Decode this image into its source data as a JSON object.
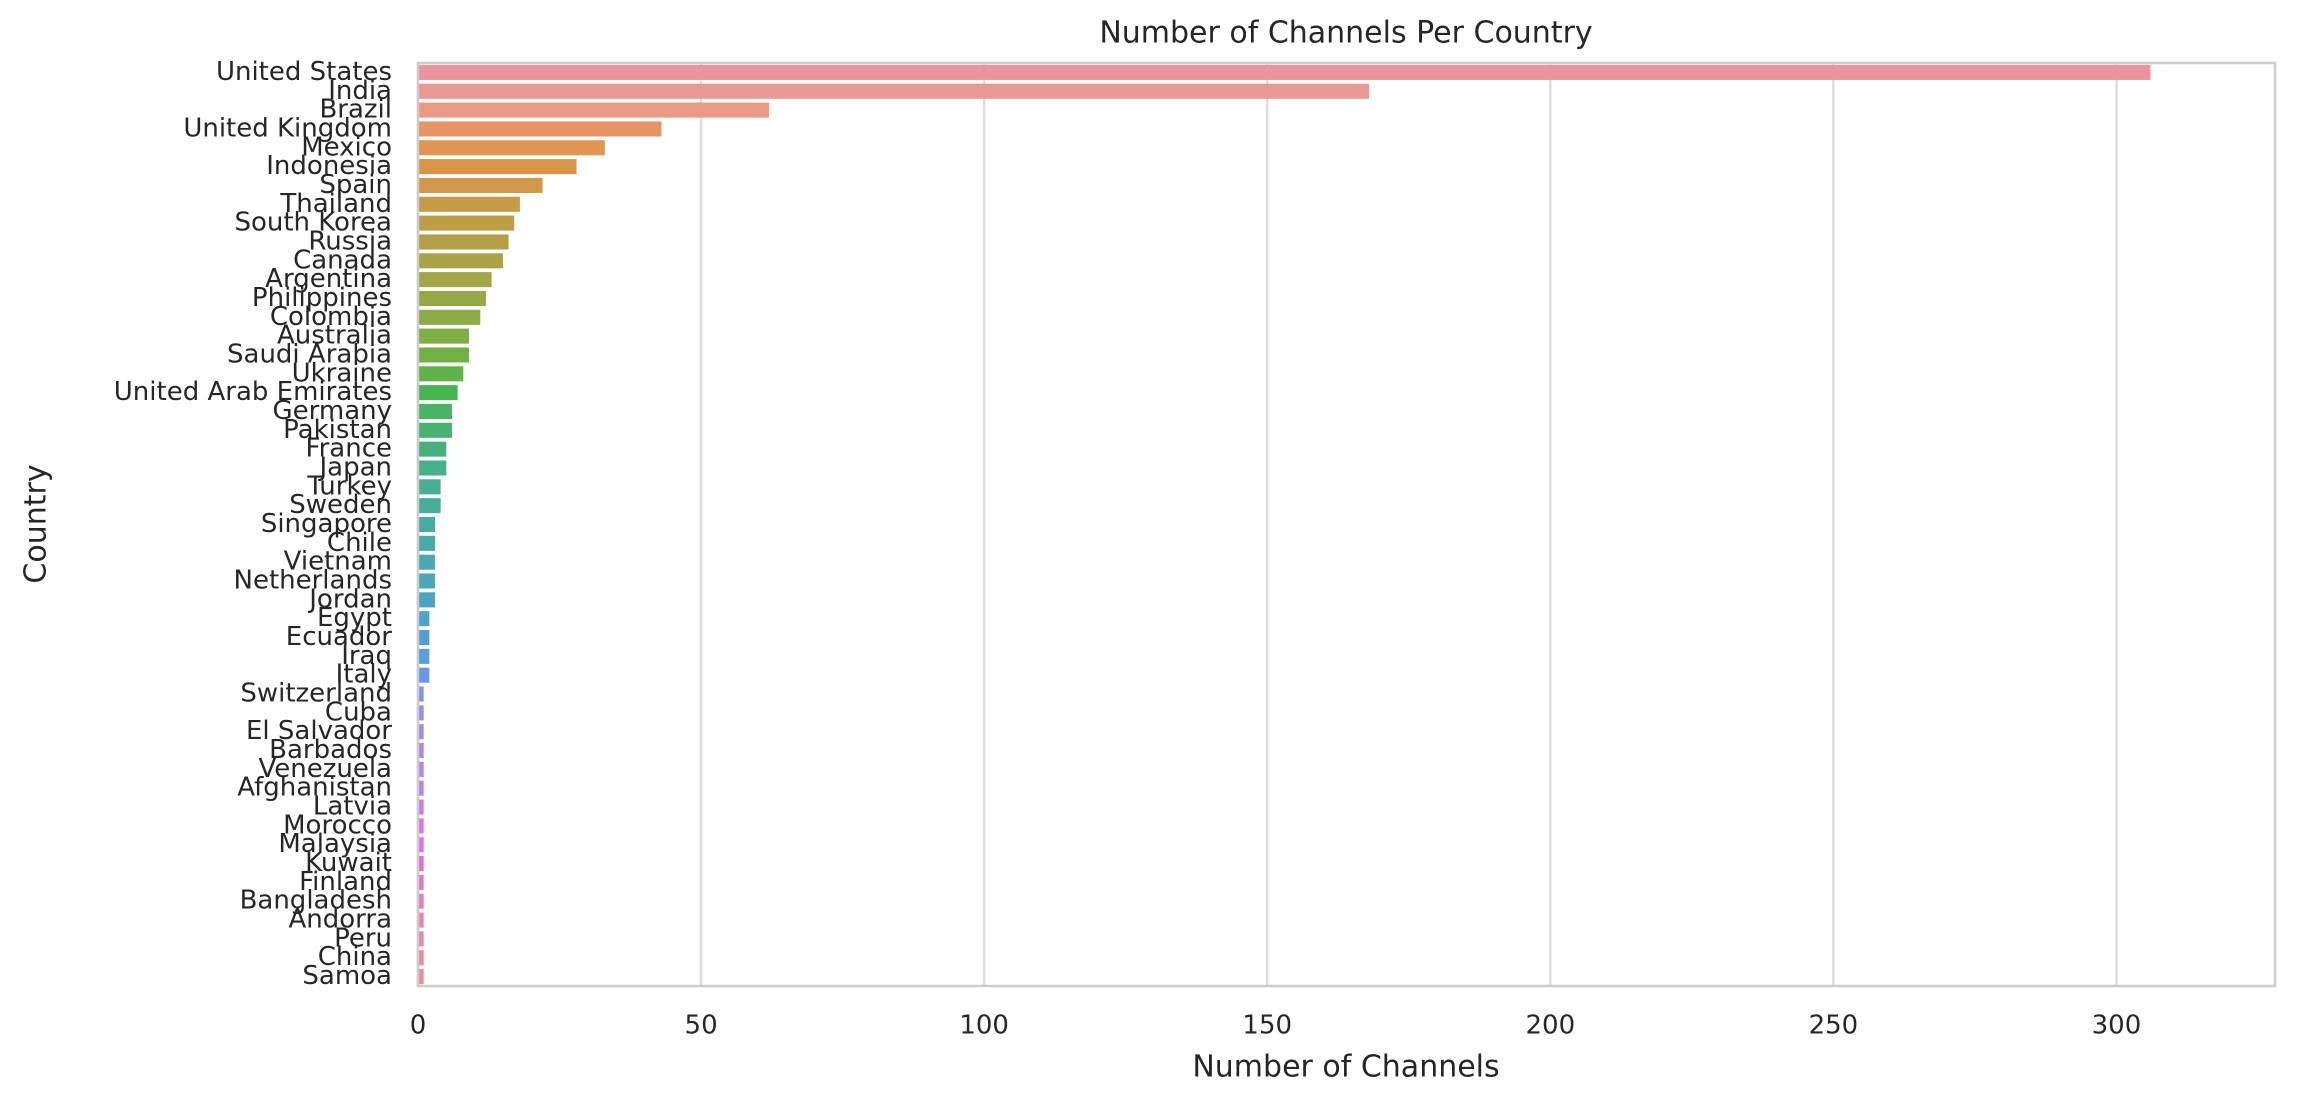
{
  "chart_data": {
    "type": "barh",
    "title": "Number of Channels Per Country",
    "x_label": "Number of Channels",
    "y_label": "Country",
    "categories": [
      "United States",
      "India",
      "Brazil",
      "United Kingdom",
      "Mexico",
      "Indonesia",
      "Spain",
      "Thailand",
      "South Korea",
      "Russia",
      "Canada",
      "Argentina",
      "Philippines",
      "Colombia",
      "Australia",
      "Saudi Arabia",
      "Ukraine",
      "United Arab Emirates",
      "Germany",
      "Pakistan",
      "France",
      "Japan",
      "Turkey",
      "Sweden",
      "Singapore",
      "Chile",
      "Vietnam",
      "Netherlands",
      "Jordan",
      "Egypt",
      "Ecuador",
      "Iraq",
      "Italy",
      "Switzerland",
      "Cuba",
      "El Salvador",
      "Barbados",
      "Venezuela",
      "Afghanistan",
      "Latvia",
      "Morocco",
      "Malaysia",
      "Kuwait",
      "Finland",
      "Bangladesh",
      "Andorra",
      "Peru",
      "China",
      "Samoa"
    ],
    "values": [
      306,
      168,
      62,
      43,
      33,
      28,
      22,
      18,
      17,
      16,
      15,
      13,
      12,
      11,
      9,
      9,
      8,
      7,
      6,
      6,
      5,
      5,
      4,
      4,
      3,
      3,
      3,
      3,
      3,
      2,
      2,
      2,
      2,
      1,
      1,
      1,
      1,
      1,
      1,
      1,
      1,
      1,
      1,
      1,
      1,
      1,
      1,
      1,
      1
    ],
    "colors": [
      "#e9959f",
      "#e99893",
      "#e89a85",
      "#e79364",
      "#e09552",
      "#d99448",
      "#cf984a",
      "#c69b48",
      "#bd9e47",
      "#b3a046",
      "#aaa346",
      "#a1a646",
      "#97a846",
      "#8dab46",
      "#80ad46",
      "#72b046",
      "#60b348",
      "#48b553",
      "#47b466",
      "#47b373",
      "#47b17e",
      "#47b088",
      "#47ae91",
      "#47ad99",
      "#48aba1",
      "#48aaa8",
      "#49a8b0",
      "#4aa7b8",
      "#4ba5c0",
      "#4da3c9",
      "#51a0d3",
      "#589ddf",
      "#6b98e6",
      "#8193e6",
      "#9190e6",
      "#9e8de6",
      "#aa89e6",
      "#b585e6",
      "#c080e5",
      "#cb7be4",
      "#d676e2",
      "#e070de",
      "#e16fd3",
      "#e27ac9",
      "#e37fbe",
      "#e484b3",
      "#e588a9",
      "#e68ca0",
      "#e79096"
    ],
    "xlim": [
      0,
      328
    ],
    "xticks": [
      0,
      50,
      100,
      150,
      200,
      250,
      300
    ],
    "grid": true
  }
}
